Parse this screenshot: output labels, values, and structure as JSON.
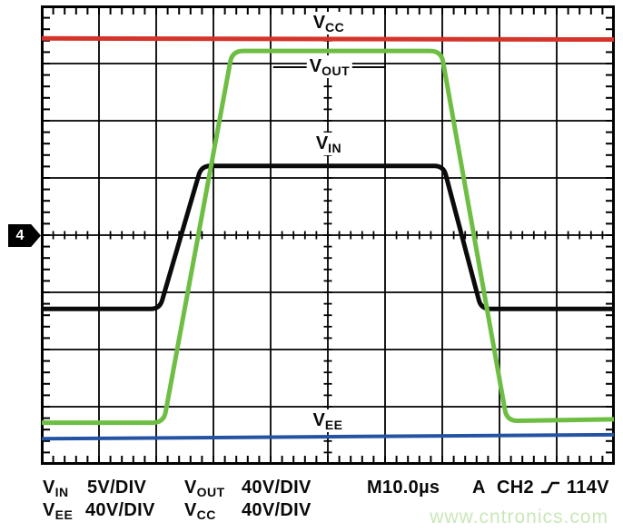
{
  "chart_data": {
    "type": "line",
    "title": "",
    "x_axis": {
      "timebase": "M10.0µs",
      "divisions": 10,
      "range_us": [
        0,
        100
      ]
    },
    "y_axis": {
      "divisions": 8,
      "unit": "graticule divisions from center (positive up)"
    },
    "grid": {
      "on": true,
      "minor_ticks_per_div": 5
    },
    "legend_position": "inline-labels",
    "series": [
      {
        "name": "V_CC",
        "color": "#d5342b",
        "scale": "40V/DIV",
        "stroke_width": 5,
        "corner_radius": 0,
        "points_us_div": [
          [
            0,
            3.44
          ],
          [
            100,
            3.42
          ]
        ]
      },
      {
        "name": "V_IN",
        "color": "#0b0b0b",
        "scale": "5V/DIV",
        "stroke_width": 5,
        "corner_radius": 10,
        "points_us_div": [
          [
            0,
            -1.29
          ],
          [
            20.6,
            -1.29
          ],
          [
            27.9,
            1.21
          ],
          [
            70.2,
            1.21
          ],
          [
            76.8,
            -1.29
          ],
          [
            100,
            -1.29
          ]
        ]
      },
      {
        "name": "V_EE",
        "color": "#2553a4",
        "scale": "40V/DIV",
        "stroke_width": 4,
        "corner_radius": 0,
        "points_us_div": [
          [
            0,
            -3.56
          ],
          [
            100,
            -3.49
          ]
        ]
      },
      {
        "name": "V_OUT",
        "color": "#6fbe44",
        "scale": "40V/DIV",
        "stroke_width": 5,
        "corner_radius": 12,
        "points_us_div": [
          [
            0,
            -3.28
          ],
          [
            21.3,
            -3.28
          ],
          [
            33.3,
            3.22
          ],
          [
            69.8,
            3.22
          ],
          [
            81.3,
            -3.25
          ],
          [
            100,
            -3.22
          ]
        ]
      }
    ]
  },
  "marker": {
    "channel": "4"
  },
  "trace_labels": {
    "vcc": {
      "base": "V",
      "sub": "CC"
    },
    "vout": {
      "base": "V",
      "sub": "OUT"
    },
    "vin": {
      "base": "V",
      "sub": "IN"
    },
    "vee": {
      "base": "V",
      "sub": "EE"
    }
  },
  "readout": {
    "vin": {
      "base": "V",
      "sub": "IN",
      "scale": "5V/DIV"
    },
    "vout": {
      "base": "V",
      "sub": "OUT",
      "scale": "40V/DIV"
    },
    "vee": {
      "base": "V",
      "sub": "EE",
      "scale": "40V/DIV"
    },
    "vcc": {
      "base": "V",
      "sub": "CC",
      "scale": "40V/DIV"
    },
    "timebase": "M10.0µs",
    "trigger": {
      "mode": "A",
      "source": "CH2",
      "slope": "rising-edge",
      "level": "114V"
    }
  },
  "watermark": "www.cntronics.com"
}
